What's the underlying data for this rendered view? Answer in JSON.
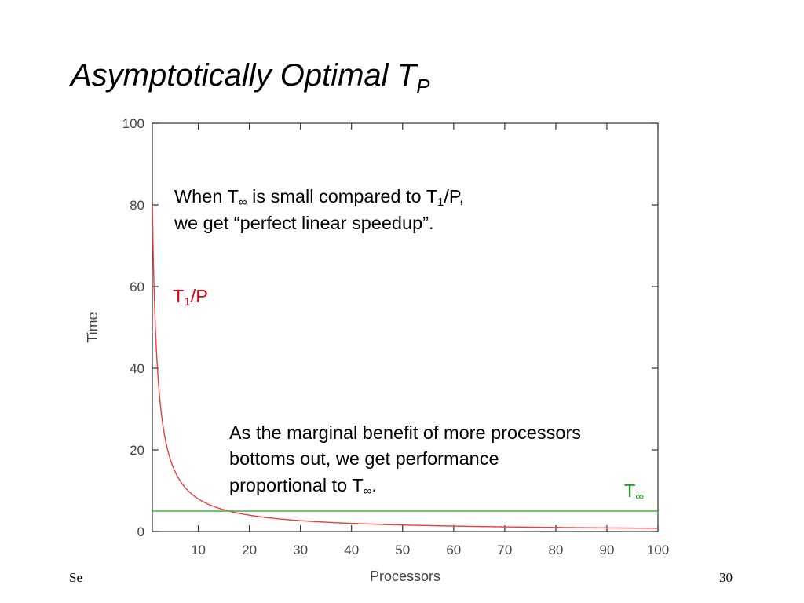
{
  "slide": {
    "title_main": "Asymptotically Optimal T",
    "title_sub": "P",
    "annotation_top": {
      "l1_a": "When T",
      "l1_sub1": "∞",
      "l1_b": " is small compared to T",
      "l1_sub2": "1",
      "l1_c": "/P,",
      "l2": "we get “perfect linear speedup”."
    },
    "annotation_bottom": {
      "l1": "As the marginal benefit of more processors",
      "l2": "bottoms out, we get performance",
      "l3_a": "proportional to T",
      "l3_sub": "∞",
      "l3_b": "."
    },
    "footer_left": "Se",
    "page_number": "30"
  },
  "chart_data": {
    "type": "line",
    "xlabel": "Processors",
    "ylabel": "Time",
    "xlim": [
      1,
      100
    ],
    "ylim": [
      0,
      100
    ],
    "x_ticks": [
      10,
      20,
      30,
      40,
      50,
      60,
      70,
      80,
      90,
      100
    ],
    "y_ticks": [
      0,
      20,
      40,
      60,
      80,
      100
    ],
    "grid": false,
    "series": [
      {
        "name": "T1/P",
        "label_main": "T",
        "label_sub": "1",
        "label_tail": "/P",
        "color": "#f03c3c",
        "label_color": "#e8000b",
        "x": [
          1,
          2,
          3,
          4,
          5,
          6,
          8,
          10,
          12,
          15,
          20,
          25,
          30,
          40,
          50,
          60,
          70,
          80,
          90,
          100
        ],
        "y": [
          80,
          40,
          26.7,
          20,
          16,
          13.3,
          10,
          8,
          6.7,
          5.3,
          4,
          3.2,
          2.7,
          2,
          1.6,
          1.3,
          1.1,
          1,
          0.9,
          0.8
        ]
      },
      {
        "name": "T∞",
        "label_main": "T",
        "label_sub": "∞",
        "color": "#3cb43c",
        "label_color": "#1a9a1a",
        "x": [
          1,
          100
        ],
        "y": [
          5,
          5
        ]
      }
    ]
  }
}
